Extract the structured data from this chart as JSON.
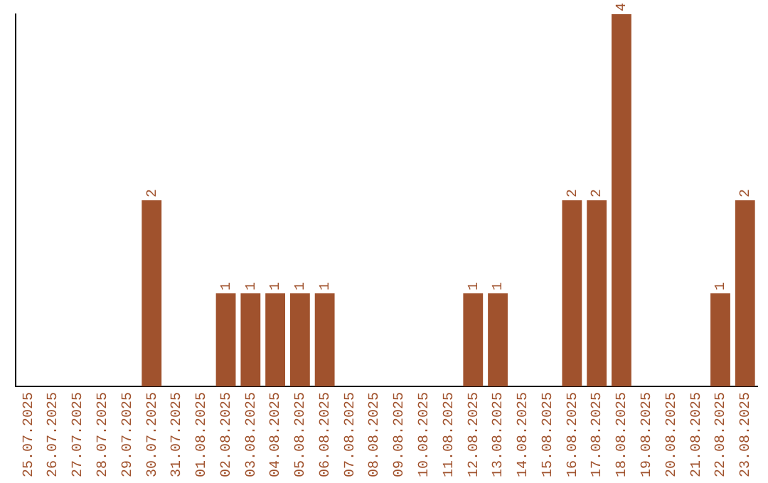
{
  "chart_data": {
    "type": "bar",
    "categories": [
      "25.07.2025",
      "26.07.2025",
      "27.07.2025",
      "28.07.2025",
      "29.07.2025",
      "30.07.2025",
      "31.07.2025",
      "01.08.2025",
      "02.08.2025",
      "03.08.2025",
      "04.08.2025",
      "05.08.2025",
      "06.08.2025",
      "07.08.2025",
      "08.08.2025",
      "09.08.2025",
      "10.08.2025",
      "11.08.2025",
      "12.08.2025",
      "13.08.2025",
      "14.08.2025",
      "15.08.2025",
      "16.08.2025",
      "17.08.2025",
      "18.08.2025",
      "19.08.2025",
      "20.08.2025",
      "21.08.2025",
      "22.08.2025",
      "23.08.2025"
    ],
    "values": [
      0,
      0,
      0,
      0,
      0,
      2,
      0,
      0,
      1,
      1,
      1,
      1,
      1,
      0,
      0,
      0,
      0,
      0,
      1,
      1,
      0,
      0,
      2,
      2,
      4,
      0,
      0,
      0,
      1,
      2
    ],
    "value_labels": [
      null,
      null,
      null,
      null,
      null,
      "2",
      null,
      null,
      "1",
      "1",
      "1",
      "1",
      "1",
      null,
      null,
      null,
      null,
      null,
      "1",
      "1",
      null,
      null,
      "2",
      "2",
      "4",
      null,
      null,
      null,
      "1",
      "2"
    ],
    "color": "#a0522d",
    "relative": false,
    "ylim": [
      0,
      4
    ],
    "tick_labels": "x",
    "grid": false,
    "legend": false
  }
}
